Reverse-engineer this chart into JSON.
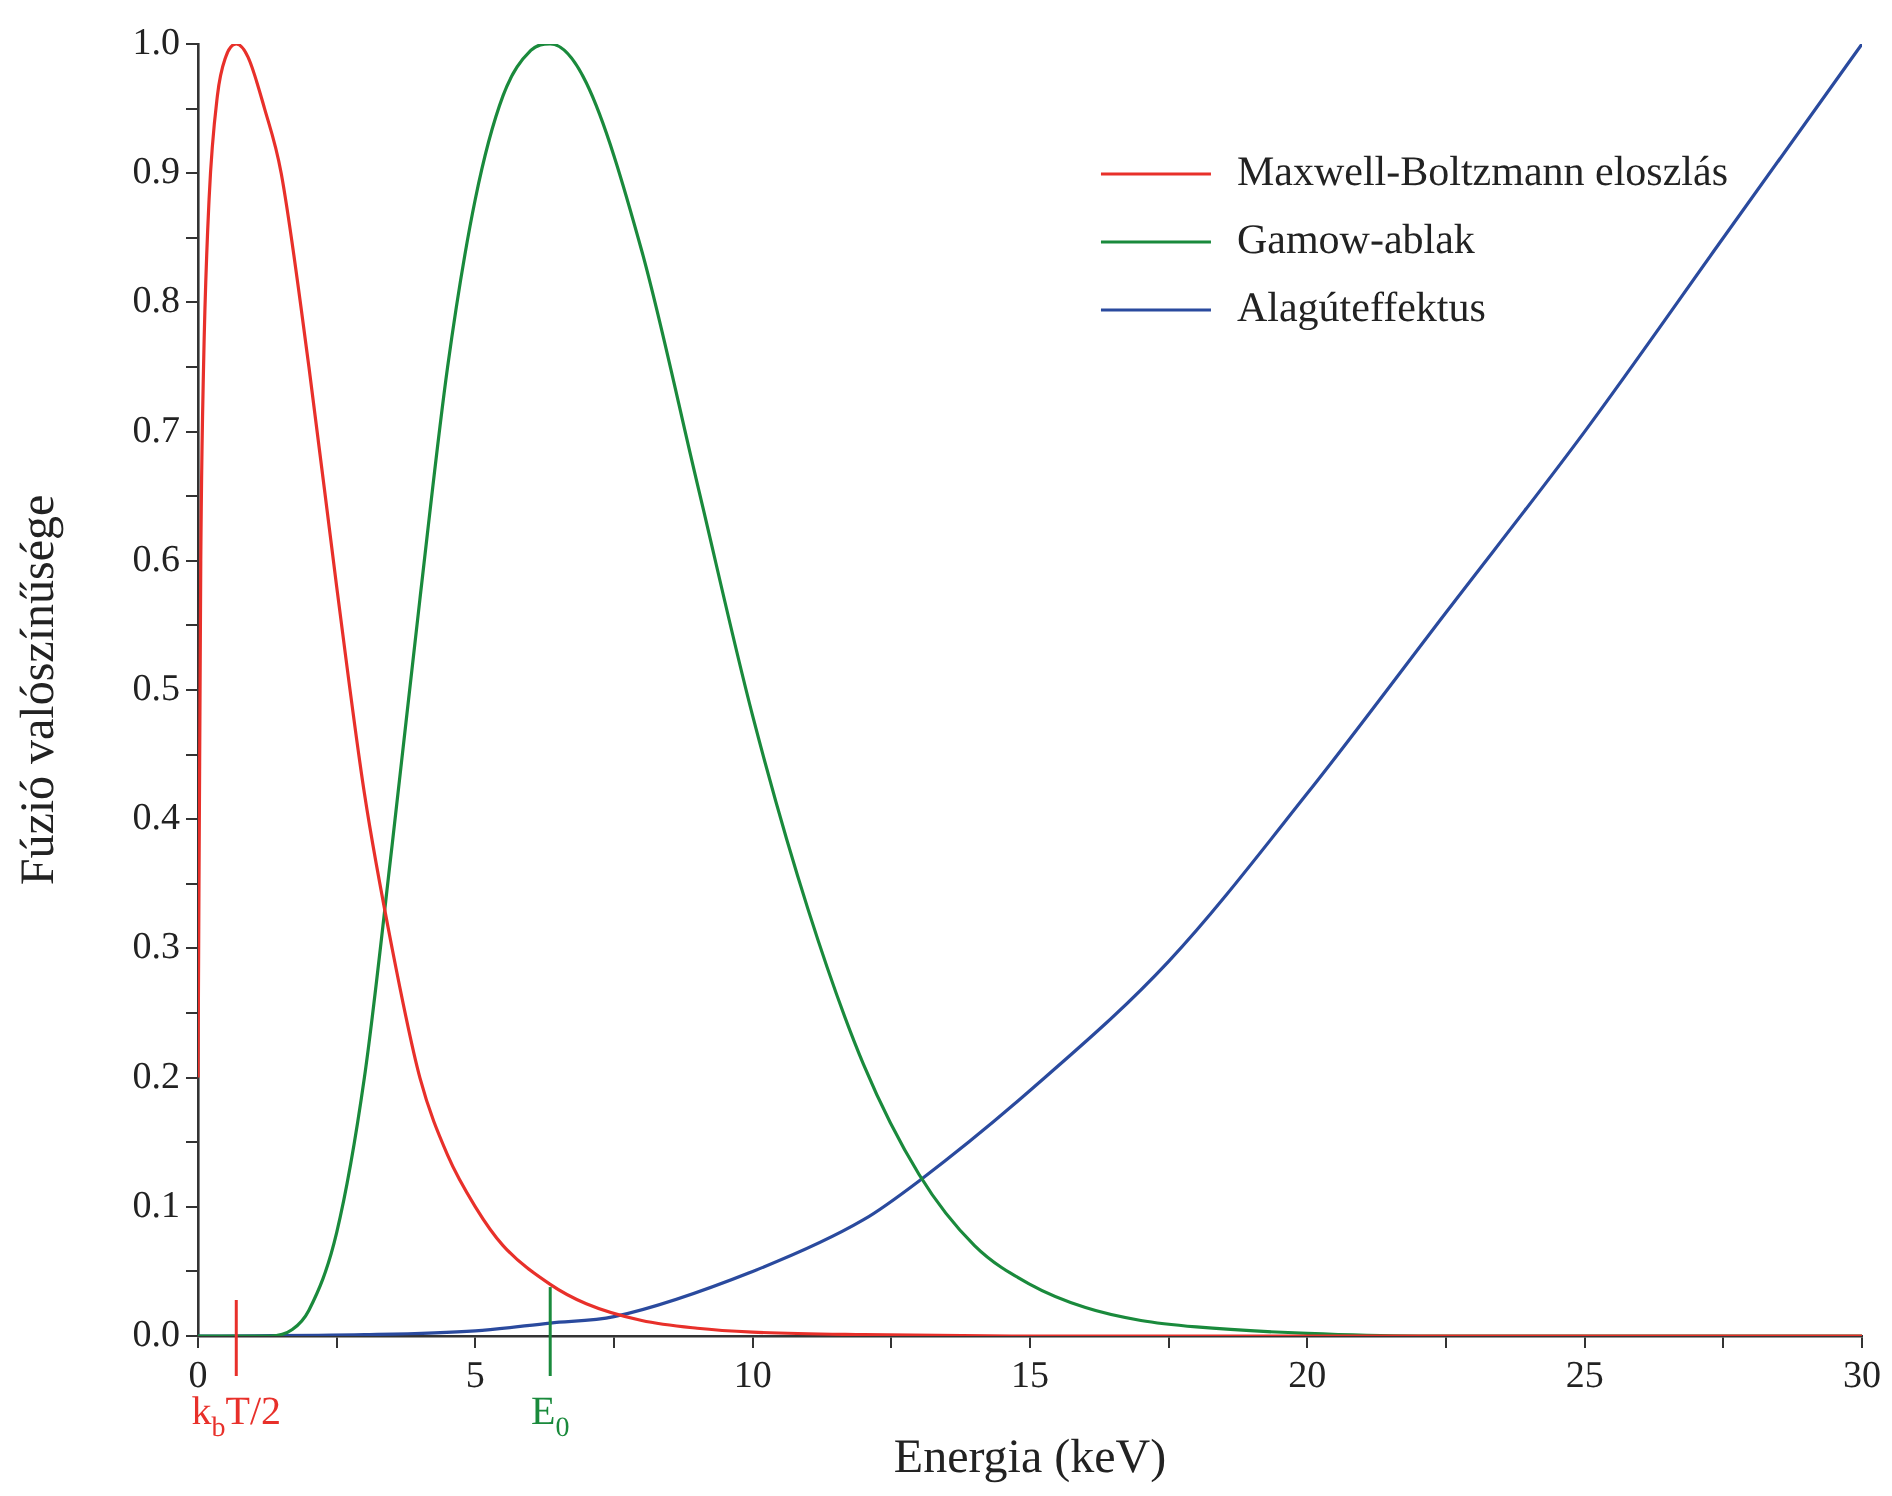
{
  "chart_data": {
    "type": "line",
    "xlabel": "Energia (keV)",
    "ylabel": "Fúzió valószínűsége",
    "xlim": [
      0,
      30
    ],
    "ylim": [
      0,
      1
    ],
    "xticks": [
      0,
      {
        "value": 2.5,
        "label": null
      },
      5,
      {
        "value": 7.5,
        "label": null
      },
      10,
      {
        "value": 12.5,
        "label": null
      },
      15,
      {
        "value": 17.5,
        "label": null
      },
      20,
      {
        "value": 22.5,
        "label": null
      },
      25,
      {
        "value": 27.5,
        "label": null
      },
      30
    ],
    "yticks": [
      {
        "value": 0,
        "label": "0.0"
      },
      {
        "value": 0.05,
        "label": null
      },
      {
        "value": 0.1,
        "label": "0.1"
      },
      {
        "value": 0.15,
        "label": null
      },
      {
        "value": 0.2,
        "label": "0.2"
      },
      {
        "value": 0.25,
        "label": null
      },
      {
        "value": 0.3,
        "label": "0.3"
      },
      {
        "value": 0.35,
        "label": null
      },
      {
        "value": 0.4,
        "label": "0.4"
      },
      {
        "value": 0.45,
        "label": null
      },
      {
        "value": 0.5,
        "label": "0.5"
      },
      {
        "value": 0.55,
        "label": null
      },
      {
        "value": 0.6,
        "label": "0.6"
      },
      {
        "value": 0.65,
        "label": null
      },
      {
        "value": 0.7,
        "label": "0.7"
      },
      {
        "value": 0.75,
        "label": null
      },
      {
        "value": 0.8,
        "label": "0.8"
      },
      {
        "value": 0.85,
        "label": null
      },
      {
        "value": 0.9,
        "label": "0.9"
      },
      {
        "value": 0.95,
        "label": null
      },
      {
        "value": 1.0,
        "label": "1.0"
      }
    ],
    "grid": false,
    "legend": "top right",
    "marker": "none",
    "line_style": "solid",
    "series": [
      {
        "name": "Maxwell-Boltzmann eloszlás",
        "color": "#e8302a",
        "x": [
          0,
          0.05,
          0.1,
          0.2,
          0.35,
          0.5,
          0.69,
          0.9,
          1.2,
          1.5,
          2,
          2.5,
          3,
          3.5,
          4,
          4.5,
          5,
          5.5,
          6.35,
          7,
          8,
          9,
          10,
          12,
          15,
          20,
          30
        ],
        "values": [
          0.2,
          0.6,
          0.75,
          0.88,
          0.96,
          0.99,
          1.0,
          0.99,
          0.95,
          0.9,
          0.75,
          0.58,
          0.42,
          0.3,
          0.2,
          0.14,
          0.1,
          0.07,
          0.04,
          0.025,
          0.012,
          0.006,
          0.003,
          0.001,
          0,
          0,
          0
        ]
      },
      {
        "name": "Gamow-ablak",
        "color": "#1a8a3c",
        "x": [
          0,
          1.3,
          1.7,
          2,
          2.5,
          3,
          3.5,
          4,
          4.5,
          5,
          5.5,
          6,
          6.35,
          7,
          8,
          9,
          10,
          11,
          12,
          13,
          14,
          15,
          16,
          17,
          18,
          20,
          22,
          25,
          30
        ],
        "values": [
          0,
          0,
          0.005,
          0.02,
          0.08,
          0.2,
          0.38,
          0.57,
          0.75,
          0.88,
          0.96,
          0.995,
          1.0,
          0.97,
          0.84,
          0.66,
          0.48,
          0.33,
          0.21,
          0.125,
          0.07,
          0.04,
          0.022,
          0.012,
          0.007,
          0.002,
          0,
          0,
          0
        ]
      },
      {
        "name": "Alagúteffektus",
        "color": "#2a4a9e",
        "x": [
          0,
          3,
          5,
          6.35,
          7.5,
          10,
          12,
          13,
          15,
          17.5,
          20,
          22.5,
          25,
          27.5,
          30
        ],
        "values": [
          0,
          0.001,
          0.004,
          0.01,
          0.015,
          0.05,
          0.09,
          0.12,
          0.19,
          0.29,
          0.42,
          0.56,
          0.7,
          0.85,
          1.0
        ]
      }
    ],
    "annotations": [
      {
        "text": "k$_{b}$T/2",
        "x": 0.69,
        "y": 0
      },
      {
        "text": "E$_{0}$",
        "x": 6.35,
        "y": 0.01
      }
    ]
  }
}
